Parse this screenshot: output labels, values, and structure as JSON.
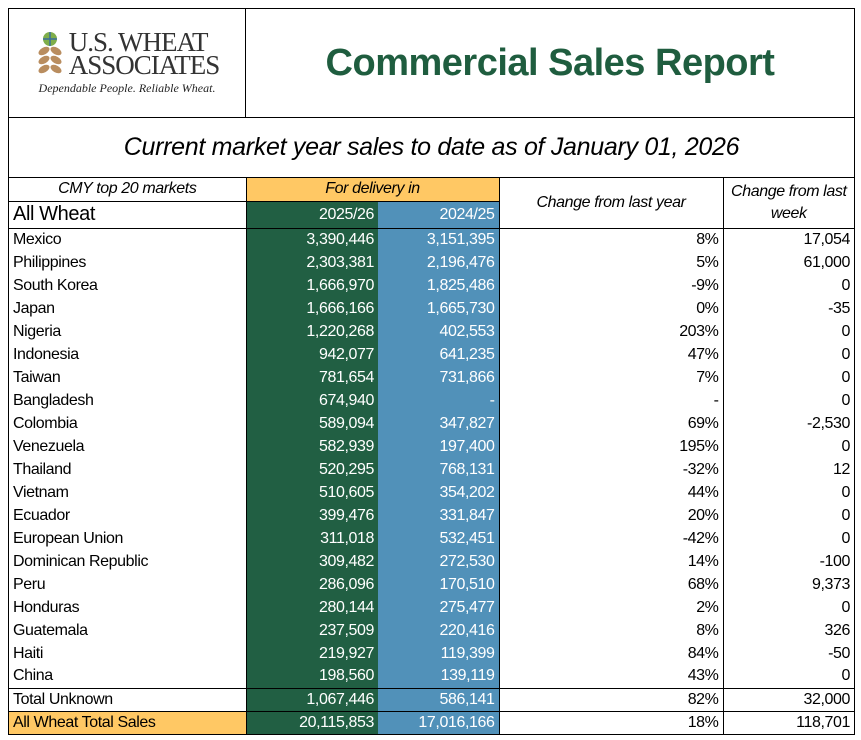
{
  "header": {
    "logo_line1": "U.S. WHEAT",
    "logo_line2": "ASSOCIATES",
    "tagline": "Dependable People. Reliable Wheat.",
    "title": "Commercial Sales Report"
  },
  "subtitle": "Current market year sales to date as of January 01, 2026",
  "columns": {
    "markets": "CMY top 20 markets",
    "delivery": "For delivery in",
    "class": "All Wheat",
    "year1": "2025/26",
    "year2": "2024/25",
    "change_year": "Change from last year",
    "change_week": "Change from last week"
  },
  "colors": {
    "green": "#215f43",
    "blue": "#5191b9",
    "orange": "#ffc864",
    "title": "#1f5d3f"
  },
  "rows": [
    [
      "Mexico",
      "3,390,446",
      "3,151,395",
      "8%",
      "17,054"
    ],
    [
      "Philippines",
      "2,303,381",
      "2,196,476",
      "5%",
      "61,000"
    ],
    [
      "South Korea",
      "1,666,970",
      "1,825,486",
      "-9%",
      "0"
    ],
    [
      "Japan",
      "1,666,166",
      "1,665,730",
      "0%",
      "-35"
    ],
    [
      "Nigeria",
      "1,220,268",
      "402,553",
      "203%",
      "0"
    ],
    [
      "Indonesia",
      "942,077",
      "641,235",
      "47%",
      "0"
    ],
    [
      "Taiwan",
      "781,654",
      "731,866",
      "7%",
      "0"
    ],
    [
      "Bangladesh",
      "674,940",
      "-",
      "-",
      "0"
    ],
    [
      "Colombia",
      "589,094",
      "347,827",
      "69%",
      "-2,530"
    ],
    [
      "Venezuela",
      "582,939",
      "197,400",
      "195%",
      "0"
    ],
    [
      "Thailand",
      "520,295",
      "768,131",
      "-32%",
      "12"
    ],
    [
      "Vietnam",
      "510,605",
      "354,202",
      "44%",
      "0"
    ],
    [
      "Ecuador",
      "399,476",
      "331,847",
      "20%",
      "0"
    ],
    [
      "European Union",
      "311,018",
      "532,451",
      "-42%",
      "0"
    ],
    [
      "Dominican Republic",
      "309,482",
      "272,530",
      "14%",
      "-100"
    ],
    [
      "Peru",
      "286,096",
      "170,510",
      "68%",
      "9,373"
    ],
    [
      "Honduras",
      "280,144",
      "275,477",
      "2%",
      "0"
    ],
    [
      "Guatemala",
      "237,509",
      "220,416",
      "8%",
      "326"
    ],
    [
      "Haiti",
      "219,927",
      "119,399",
      "84%",
      "-50"
    ],
    [
      "China",
      "198,560",
      "139,119",
      "43%",
      "0"
    ]
  ],
  "total_unknown": [
    "Total Unknown",
    "1,067,446",
    "586,141",
    "82%",
    "32,000"
  ],
  "total_sales": [
    "All Wheat Total Sales",
    "20,115,853",
    "17,016,166",
    "18%",
    "118,701"
  ]
}
